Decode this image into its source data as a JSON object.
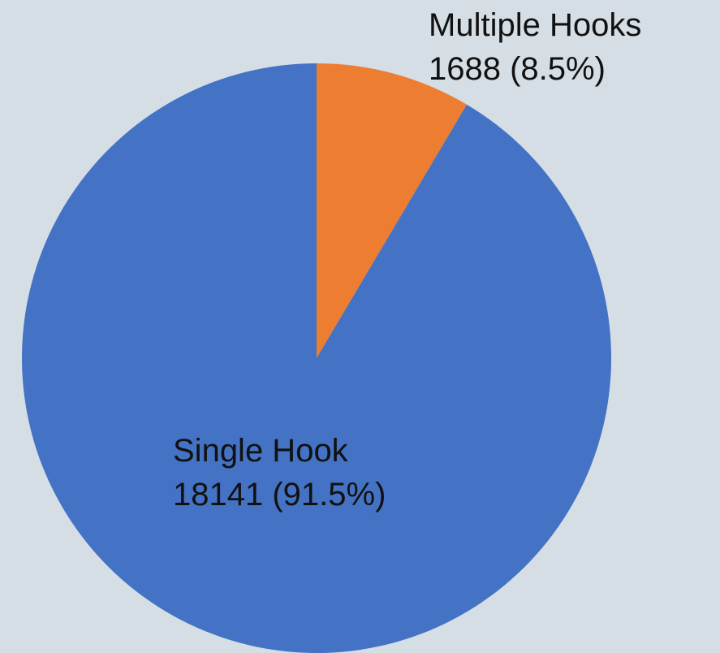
{
  "chart_data": {
    "type": "pie",
    "title": "",
    "slices": [
      {
        "name": "Multiple Hooks",
        "value": 1688,
        "percent_label": "1688 (8.5%)",
        "color": "#ed7d31"
      },
      {
        "name": "Single Hook",
        "value": 18141,
        "percent_label": "18141 (91.5%)",
        "color": "#4472c4"
      }
    ],
    "start_angle": "12 o'clock",
    "direction": "clockwise",
    "legend": "none",
    "background_color": "#d5dee5"
  }
}
